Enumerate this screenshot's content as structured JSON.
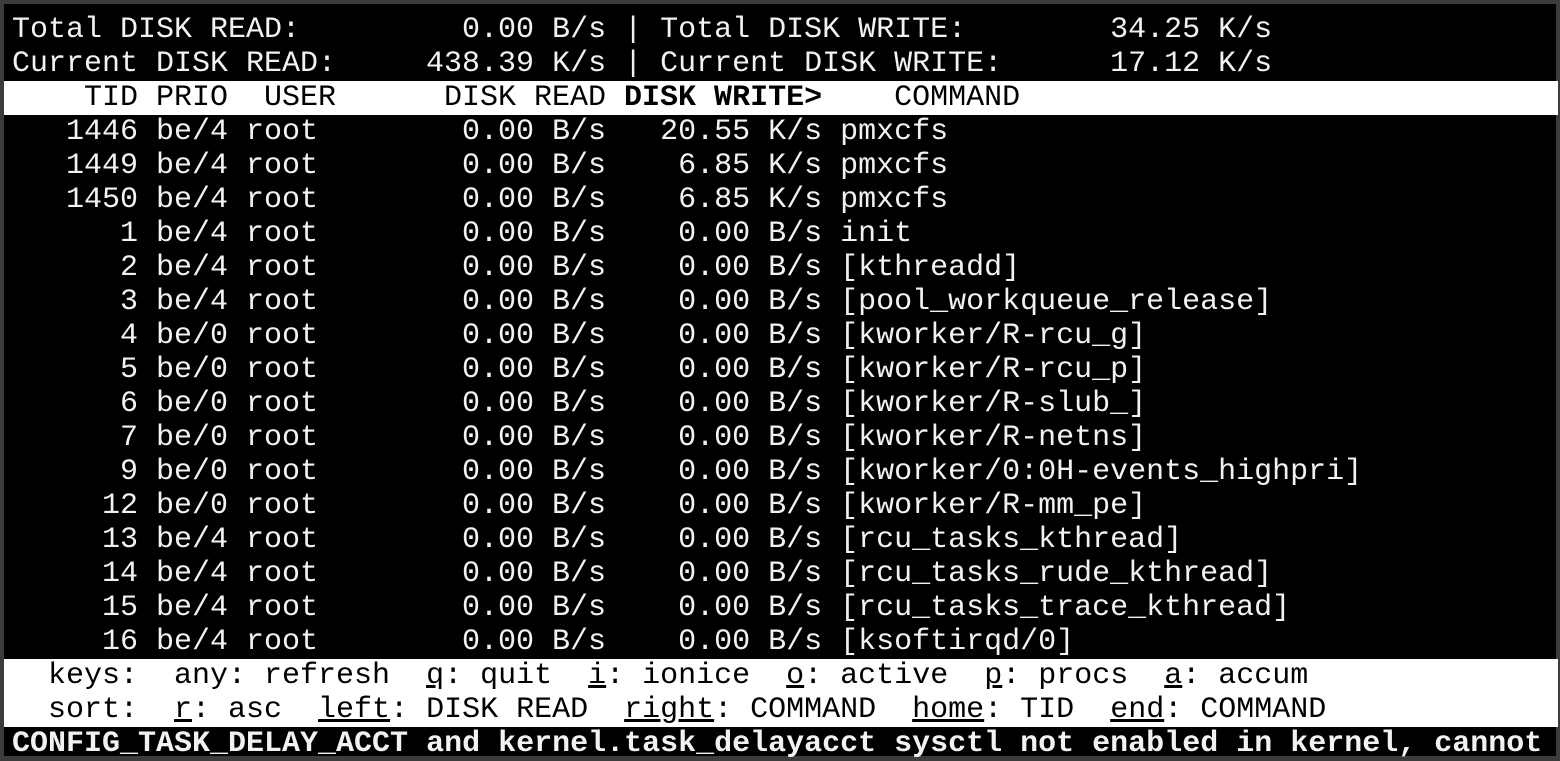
{
  "summary": {
    "total_read_label": "Total DISK READ:",
    "total_read_value": "0.00 B/s",
    "total_write_label": "Total DISK WRITE:",
    "total_write_value": "34.25 K/s",
    "current_read_label": "Current DISK READ:",
    "current_read_value": "438.39 K/s",
    "current_write_label": "Current DISK WRITE:",
    "current_write_value": "17.12 K/s",
    "separator": "|"
  },
  "columns": {
    "tid": "TID",
    "prio": "PRIO",
    "user": "USER",
    "disk_read": "DISK READ",
    "disk_write": "DISK WRITE>",
    "command": "COMMAND"
  },
  "rows": [
    {
      "tid": "1446",
      "prio": "be/4",
      "user": "root",
      "read": "0.00 B/s",
      "write": "20.55 K/s",
      "command": "pmxcfs"
    },
    {
      "tid": "1449",
      "prio": "be/4",
      "user": "root",
      "read": "0.00 B/s",
      "write": "6.85 K/s",
      "command": "pmxcfs"
    },
    {
      "tid": "1450",
      "prio": "be/4",
      "user": "root",
      "read": "0.00 B/s",
      "write": "6.85 K/s",
      "command": "pmxcfs"
    },
    {
      "tid": "1",
      "prio": "be/4",
      "user": "root",
      "read": "0.00 B/s",
      "write": "0.00 B/s",
      "command": "init"
    },
    {
      "tid": "2",
      "prio": "be/4",
      "user": "root",
      "read": "0.00 B/s",
      "write": "0.00 B/s",
      "command": "[kthreadd]"
    },
    {
      "tid": "3",
      "prio": "be/4",
      "user": "root",
      "read": "0.00 B/s",
      "write": "0.00 B/s",
      "command": "[pool_workqueue_release]"
    },
    {
      "tid": "4",
      "prio": "be/0",
      "user": "root",
      "read": "0.00 B/s",
      "write": "0.00 B/s",
      "command": "[kworker/R-rcu_g]"
    },
    {
      "tid": "5",
      "prio": "be/0",
      "user": "root",
      "read": "0.00 B/s",
      "write": "0.00 B/s",
      "command": "[kworker/R-rcu_p]"
    },
    {
      "tid": "6",
      "prio": "be/0",
      "user": "root",
      "read": "0.00 B/s",
      "write": "0.00 B/s",
      "command": "[kworker/R-slub_]"
    },
    {
      "tid": "7",
      "prio": "be/0",
      "user": "root",
      "read": "0.00 B/s",
      "write": "0.00 B/s",
      "command": "[kworker/R-netns]"
    },
    {
      "tid": "9",
      "prio": "be/0",
      "user": "root",
      "read": "0.00 B/s",
      "write": "0.00 B/s",
      "command": "[kworker/0:0H-events_highpri]"
    },
    {
      "tid": "12",
      "prio": "be/0",
      "user": "root",
      "read": "0.00 B/s",
      "write": "0.00 B/s",
      "command": "[kworker/R-mm_pe]"
    },
    {
      "tid": "13",
      "prio": "be/4",
      "user": "root",
      "read": "0.00 B/s",
      "write": "0.00 B/s",
      "command": "[rcu_tasks_kthread]"
    },
    {
      "tid": "14",
      "prio": "be/4",
      "user": "root",
      "read": "0.00 B/s",
      "write": "0.00 B/s",
      "command": "[rcu_tasks_rude_kthread]"
    },
    {
      "tid": "15",
      "prio": "be/4",
      "user": "root",
      "read": "0.00 B/s",
      "write": "0.00 B/s",
      "command": "[rcu_tasks_trace_kthread]"
    },
    {
      "tid": "16",
      "prio": "be/4",
      "user": "root",
      "read": "0.00 B/s",
      "write": "0.00 B/s",
      "command": "[ksoftirqd/0]"
    }
  ],
  "footer": {
    "keys_label": "keys:",
    "keys": [
      {
        "key": "any",
        "desc": ": refresh",
        "underline": false
      },
      {
        "key": "q",
        "desc": ": quit",
        "underline": true
      },
      {
        "key": "i",
        "desc": ": ionice",
        "underline": true
      },
      {
        "key": "o",
        "desc": ": active",
        "underline": true
      },
      {
        "key": "p",
        "desc": ": procs",
        "underline": true
      },
      {
        "key": "a",
        "desc": ": accum",
        "underline": true
      }
    ],
    "sort_label": "sort:",
    "sort": [
      {
        "key": "r",
        "desc": ": asc",
        "underline": true
      },
      {
        "key": "left",
        "desc": ": DISK READ",
        "underline": true
      },
      {
        "key": "right",
        "desc": ": COMMAND",
        "underline": true
      },
      {
        "key": "home",
        "desc": ": TID",
        "underline": true
      },
      {
        "key": "end",
        "desc": ": COMMAND",
        "underline": true
      }
    ]
  },
  "warning": "CONFIG_TASK_DELAY_ACCT and kernel.task_delayacct sysctl not enabled in kernel, cannot",
  "colors": {
    "background": "#000000",
    "foreground": "#f2f2f2",
    "inverse_bg": "#ffffff"
  }
}
